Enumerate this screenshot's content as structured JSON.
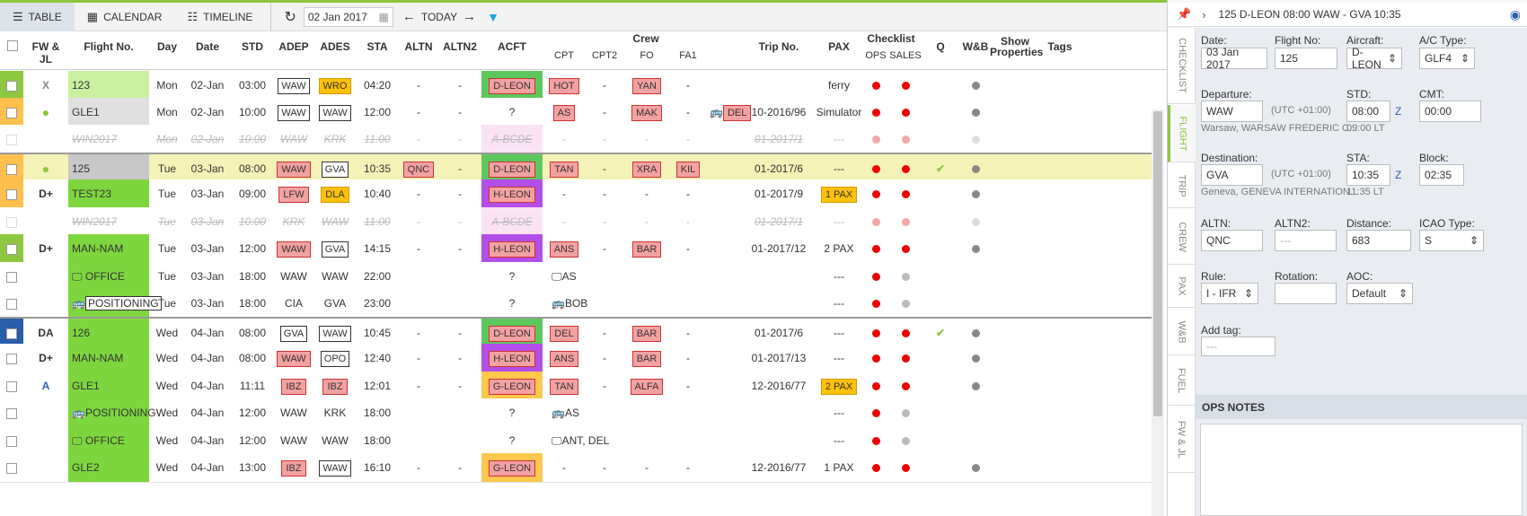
{
  "toolbar": {
    "table": "TABLE",
    "calendar": "CALENDAR",
    "timeline": "TIMELINE",
    "date": "02 Jan 2017",
    "today": "TODAY"
  },
  "header": {
    "fwjl": "FW & JL",
    "flight": "Flight No.",
    "day": "Day",
    "date": "Date",
    "std": "STD",
    "adep": "ADEP",
    "ades": "ADES",
    "sta": "STA",
    "altn": "ALTN",
    "altn2": "ALTN2",
    "acft": "ACFT",
    "crew": "Crew",
    "cpt": "CPT",
    "cpt2": "CPT2",
    "fo": "FO",
    "fa1": "FA1",
    "trip": "Trip No.",
    "pax": "PAX",
    "checklist": "Checklist",
    "ops": "OPS",
    "sales": "SALES",
    "q": "Q",
    "wb": "W&B",
    "show": "Show Properties",
    "tags": "Tags"
  },
  "rows": [
    {
      "fw": "X",
      "fwcolor": "#888",
      "stripe": "#8dc63f",
      "fnum": "123",
      "fbg": "#c8f0a0",
      "fstyle": "",
      "day": "Mon",
      "date": "02-Jan",
      "std": "03:00",
      "adep": "WAW",
      "adepT": "w",
      "ades": "WRO",
      "adesT": "o",
      "sta": "04:20",
      "altn": "-",
      "altnT": "",
      "altn2": "-",
      "acft": "D-LEON",
      "acftbg": "#5cc85c",
      "cpt": "HOT",
      "cptT": "r",
      "cpt2": "-",
      "fo": "YAN",
      "foT": "r",
      "fa1": "-",
      "extra": "",
      "trip": "",
      "pax": "ferry",
      "paxT": "",
      "ops": "#e00",
      "sales": "#e00",
      "q": "",
      "wb": "#888",
      "dim": false,
      "bg": "#fff"
    },
    {
      "fw": "●",
      "fwcolor": "#8dc63f",
      "stripe": "#ffc04d",
      "fnum": "GLE1",
      "fbg": "#e0e0e0",
      "fstyle": "",
      "day": "Mon",
      "date": "02-Jan",
      "std": "10:00",
      "adep": "WAW",
      "adepT": "w",
      "ades": "WAW",
      "adesT": "w",
      "sta": "12:00",
      "altn": "-",
      "altnT": "",
      "altn2": "-",
      "acft": "?",
      "acftbg": "",
      "cpt": "AS",
      "cptT": "r",
      "cpt2": "-",
      "fo": "MAK",
      "foT": "r",
      "fa1": "-",
      "extra": "DEL",
      "trip": "10-2016/96",
      "pax": "Simulator",
      "paxT": "",
      "ops": "#e00",
      "sales": "#e00",
      "q": "",
      "wb": "#888",
      "dim": false,
      "bg": "#fff"
    },
    {
      "fw": "",
      "fwcolor": "#888",
      "stripe": "",
      "fnum": "WIN2017",
      "fbg": "",
      "fstyle": "strike",
      "day": "Mon",
      "date": "02-Jan",
      "std": "10:00",
      "adep": "WAW",
      "adepT": "",
      "ades": "KRK",
      "adesT": "",
      "sta": "11:00",
      "altn": "-",
      "altnT": "",
      "altn2": "-",
      "acft": "A-BCDE",
      "acftbg": "#fbe3f5",
      "cpt": "-",
      "cptT": "",
      "cpt2": "-",
      "fo": "-",
      "foT": "",
      "fa1": "-",
      "extra": "",
      "trip": "01-2017/1",
      "pax": "---",
      "paxT": "",
      "ops": "#f3a6a6",
      "sales": "#f3a6a6",
      "q": "",
      "wb": "#ddd",
      "dim": true,
      "bg": "#fff"
    },
    {
      "fw": "●",
      "fwcolor": "#8dc63f",
      "stripe": "#ffc04d",
      "fnum": "125",
      "fbg": "#c8c8c8",
      "fstyle": "",
      "day": "Tue",
      "date": "03-Jan",
      "std": "08:00",
      "adep": "WAW",
      "adepT": "r",
      "ades": "GVA",
      "adesT": "w",
      "sta": "10:35",
      "altn": "QNC",
      "altnT": "r",
      "altn2": "-",
      "acft": "D-LEON",
      "acftbg": "#5cc85c",
      "cpt": "TAN",
      "cptT": "r",
      "cpt2": "-",
      "fo": "XRA",
      "foT": "r",
      "fa1": "KIL",
      "extra": "",
      "trip": "01-2017/6",
      "pax": "---",
      "paxT": "",
      "ops": "#e00",
      "sales": "#e00",
      "q": "✔",
      "wb": "#888",
      "dim": false,
      "bg": "#f5f2b8"
    },
    {
      "fw": "D+",
      "fwcolor": "#333",
      "stripe": "#ffc04d",
      "fnum": "TEST23",
      "fbg": "#7ed63f",
      "fstyle": "",
      "day": "Tue",
      "date": "03-Jan",
      "std": "09:00",
      "adep": "LFW",
      "adepT": "r",
      "ades": "DLA",
      "adesT": "o",
      "sta": "10:40",
      "altn": "-",
      "altnT": "",
      "altn2": "-",
      "acft": "H-LEON",
      "acftbg": "#b44ee8",
      "cpt": "-",
      "cptT": "",
      "cpt2": "-",
      "fo": "-",
      "foT": "",
      "fa1": "-",
      "extra": "",
      "trip": "01-2017/9",
      "pax": "1 PAX",
      "paxT": "o",
      "ops": "#e00",
      "sales": "#e00",
      "q": "",
      "wb": "#888",
      "dim": false,
      "bg": "#fff"
    },
    {
      "fw": "",
      "fwcolor": "#888",
      "stripe": "",
      "fnum": "WIN2017",
      "fbg": "",
      "fstyle": "strike",
      "day": "Tue",
      "date": "03-Jan",
      "std": "10:00",
      "adep": "KRK",
      "adepT": "",
      "ades": "WAW",
      "adesT": "",
      "sta": "11:00",
      "altn": "-",
      "altnT": "",
      "altn2": "-",
      "acft": "A-BCDE",
      "acftbg": "#fbe3f5",
      "cpt": "-",
      "cptT": "",
      "cpt2": "-",
      "fo": "-",
      "foT": "",
      "fa1": "-",
      "extra": "",
      "trip": "01-2017/1",
      "pax": "---",
      "paxT": "",
      "ops": "#f3a6a6",
      "sales": "#f3a6a6",
      "q": "",
      "wb": "#ddd",
      "dim": true,
      "bg": "#fff"
    },
    {
      "fw": "D+",
      "fwcolor": "#333",
      "stripe": "#8dc63f",
      "fnum": "MAN-NAM",
      "fbg": "#7ed63f",
      "fstyle": "",
      "day": "Tue",
      "date": "03-Jan",
      "std": "12:00",
      "adep": "WAW",
      "adepT": "r",
      "ades": "GVA",
      "adesT": "w",
      "sta": "14:15",
      "altn": "-",
      "altnT": "",
      "altn2": "-",
      "acft": "H-LEON",
      "acftbg": "#b44ee8",
      "cpt": "ANS",
      "cptT": "r",
      "cpt2": "-",
      "fo": "BAR",
      "foT": "r",
      "fa1": "-",
      "extra": "",
      "trip": "01-2017/12",
      "pax": "2 PAX",
      "paxT": "",
      "ops": "#e00",
      "sales": "#e00",
      "q": "",
      "wb": "#888",
      "dim": false,
      "bg": "#fff"
    },
    {
      "fw": "",
      "fwcolor": "#888",
      "stripe": "",
      "fnum": "OFFICE",
      "fbg": "#7ed63f",
      "fstyle": "office",
      "day": "Tue",
      "date": "03-Jan",
      "std": "18:00",
      "adep": "WAW",
      "adepT": "",
      "ades": "WAW",
      "adesT": "",
      "sta": "22:00",
      "altn": "",
      "altnT": "",
      "altn2": "",
      "acft": "?",
      "acftbg": "",
      "cpt": "AS",
      "cptT": "office",
      "cpt2": "",
      "fo": "",
      "foT": "",
      "fa1": "",
      "extra": "",
      "trip": "",
      "pax": "---",
      "paxT": "",
      "ops": "#e00",
      "sales": "#bbb",
      "q": "",
      "wb": "",
      "dim": false,
      "bg": "#fff"
    },
    {
      "fw": "",
      "fwcolor": "#888",
      "stripe": "",
      "fnum": "POSITIONING",
      "fbg": "#7ed63f",
      "fstyle": "posbox",
      "day": "Tue",
      "date": "03-Jan",
      "std": "18:00",
      "adep": "CIA",
      "adepT": "",
      "ades": "GVA",
      "adesT": "",
      "sta": "23:00",
      "altn": "",
      "altnT": "",
      "altn2": "",
      "acft": "?",
      "acftbg": "",
      "cpt": "BOB",
      "cptT": "bus",
      "cpt2": "",
      "fo": "",
      "foT": "",
      "fa1": "",
      "extra": "",
      "trip": "",
      "pax": "---",
      "paxT": "",
      "ops": "#e00",
      "sales": "#bbb",
      "q": "",
      "wb": "",
      "dim": false,
      "bg": "#fff"
    },
    {
      "fw": "DA",
      "fwcolor": "#333",
      "stripe": "#2a5ea8",
      "fnum": "126",
      "fbg": "#7ed63f",
      "fstyle": "",
      "day": "Wed",
      "date": "04-Jan",
      "std": "08:00",
      "adep": "GVA",
      "adepT": "w",
      "ades": "WAW",
      "adesT": "w",
      "sta": "10:45",
      "altn": "-",
      "altnT": "",
      "altn2": "-",
      "acft": "D-LEON",
      "acftbg": "#5cc85c",
      "cpt": "DEL",
      "cptT": "r",
      "cpt2": "-",
      "fo": "BAR",
      "foT": "r",
      "fa1": "-",
      "extra": "",
      "trip": "01-2017/6",
      "pax": "---",
      "paxT": "",
      "ops": "#e00",
      "sales": "#e00",
      "q": "✔",
      "wb": "#888",
      "dim": false,
      "bg": "#fff"
    },
    {
      "fw": "D+",
      "fwcolor": "#333",
      "stripe": "",
      "fnum": "MAN-NAM",
      "fbg": "#7ed63f",
      "fstyle": "",
      "day": "Wed",
      "date": "04-Jan",
      "std": "08:00",
      "adep": "WAW",
      "adepT": "r",
      "ades": "OPO",
      "adesT": "w",
      "sta": "12:40",
      "altn": "-",
      "altnT": "",
      "altn2": "-",
      "acft": "H-LEON",
      "acftbg": "#b44ee8",
      "cpt": "ANS",
      "cptT": "r",
      "cpt2": "-",
      "fo": "BAR",
      "foT": "r",
      "fa1": "-",
      "extra": "",
      "trip": "01-2017/13",
      "pax": "---",
      "paxT": "",
      "ops": "#e00",
      "sales": "#e00",
      "q": "",
      "wb": "#888",
      "dim": false,
      "bg": "#fff"
    },
    {
      "fw": "A",
      "fwcolor": "#2a5ea8",
      "stripe": "",
      "fnum": "GLE1",
      "fbg": "#7ed63f",
      "fstyle": "",
      "day": "Wed",
      "date": "04-Jan",
      "std": "11:11",
      "adep": "IBZ",
      "adepT": "r",
      "ades": "IBZ",
      "adesT": "r",
      "sta": "12:01",
      "altn": "-",
      "altnT": "",
      "altn2": "-",
      "acft": "G-LEON",
      "acftbg": "#ffc84d",
      "cpt": "TAN",
      "cptT": "r",
      "cpt2": "-",
      "fo": "ALFA",
      "foT": "r",
      "fa1": "-",
      "extra": "",
      "trip": "12-2016/77",
      "pax": "2 PAX",
      "paxT": "o",
      "ops": "#e00",
      "sales": "#e00",
      "q": "",
      "wb": "#888",
      "dim": false,
      "bg": "#fff"
    },
    {
      "fw": "",
      "fwcolor": "#888",
      "stripe": "",
      "fnum": "POSITIONING",
      "fbg": "#7ed63f",
      "fstyle": "bus",
      "day": "Wed",
      "date": "04-Jan",
      "std": "12:00",
      "adep": "WAW",
      "adepT": "",
      "ades": "KRK",
      "adesT": "",
      "sta": "18:00",
      "altn": "",
      "altnT": "",
      "altn2": "",
      "acft": "?",
      "acftbg": "",
      "cpt": "AS",
      "cptT": "bus",
      "cpt2": "",
      "fo": "",
      "foT": "",
      "fa1": "",
      "extra": "",
      "trip": "",
      "pax": "---",
      "paxT": "",
      "ops": "#e00",
      "sales": "#bbb",
      "q": "",
      "wb": "",
      "dim": false,
      "bg": "#fff"
    },
    {
      "fw": "",
      "fwcolor": "#888",
      "stripe": "",
      "fnum": "OFFICE",
      "fbg": "#7ed63f",
      "fstyle": "office",
      "day": "Wed",
      "date": "04-Jan",
      "std": "12:00",
      "adep": "WAW",
      "adepT": "",
      "ades": "WAW",
      "adesT": "",
      "sta": "18:00",
      "altn": "",
      "altnT": "",
      "altn2": "",
      "acft": "?",
      "acftbg": "",
      "cpt": "ANT,  DEL",
      "cptT": "office",
      "cpt2": "",
      "fo": "",
      "foT": "",
      "fa1": "",
      "extra": "",
      "trip": "",
      "pax": "---",
      "paxT": "",
      "ops": "#e00",
      "sales": "#bbb",
      "q": "",
      "wb": "",
      "dim": false,
      "bg": "#fff"
    },
    {
      "fw": "",
      "fwcolor": "#888",
      "stripe": "",
      "fnum": "GLE2",
      "fbg": "#7ed63f",
      "fstyle": "",
      "day": "Wed",
      "date": "04-Jan",
      "std": "13:00",
      "adep": "IBZ",
      "adepT": "r",
      "ades": "WAW",
      "adesT": "w",
      "sta": "16:10",
      "altn": "-",
      "altnT": "",
      "altn2": "-",
      "acft": "G-LEON",
      "acftbg": "#ffc84d",
      "cpt": "-",
      "cptT": "",
      "cpt2": "-",
      "fo": "-",
      "foT": "",
      "fa1": "-",
      "extra": "",
      "trip": "12-2016/77",
      "pax": "1 PAX",
      "paxT": "",
      "ops": "#e00",
      "sales": "#e00",
      "q": "",
      "wb": "#888",
      "dim": false,
      "bg": "#fff"
    }
  ],
  "side": {
    "title": "125 D-LEON 08:00 WAW - GVA 10:35",
    "tabs": [
      "CHECKLIST",
      "FLIGHT",
      "TRIP",
      "CREW",
      "PAX",
      "W&B",
      "FUEL",
      "FW & JL"
    ],
    "labels": {
      "date": "Date:",
      "flight_no": "Flight No:",
      "aircraft": "Aircraft:",
      "ac_type": "A/C Type:",
      "departure": "Departure:",
      "std": "STD:",
      "cmt": "CMT:",
      "destination": "Destination:",
      "sta": "STA:",
      "block": "Block:",
      "altn": "ALTN:",
      "altn2": "ALTN2:",
      "distance": "Distance:",
      "icao": "ICAO Type:",
      "rule": "Rule:",
      "rotation": "Rotation:",
      "aoc": "AOC:",
      "addtag": "Add tag:"
    },
    "values": {
      "date": "03 Jan 2017",
      "flight_no": "125",
      "aircraft": "D-LEON",
      "ac_type": "GLF4",
      "departure": "WAW",
      "dep_utc": "(UTC +01:00)",
      "std": "08:00",
      "z1": "Z",
      "cmt": "00:00",
      "dep_name": "Warsaw, WARSAW FREDERIC C...",
      "dep_lt": "09:00 LT",
      "destination": "GVA",
      "dest_utc": "(UTC +01:00)",
      "sta": "10:35",
      "z2": "Z",
      "block": "02:35",
      "dest_name": "Geneva, GENEVA INTERNATION...",
      "dest_lt": "11:35 LT",
      "altn": "QNC",
      "altn2": "---",
      "distance": "683",
      "icao": "S",
      "rule": "I - IFR",
      "rotation": "",
      "aoc": "Default",
      "addtag": "---"
    },
    "notes_title": "OPS NOTES"
  }
}
